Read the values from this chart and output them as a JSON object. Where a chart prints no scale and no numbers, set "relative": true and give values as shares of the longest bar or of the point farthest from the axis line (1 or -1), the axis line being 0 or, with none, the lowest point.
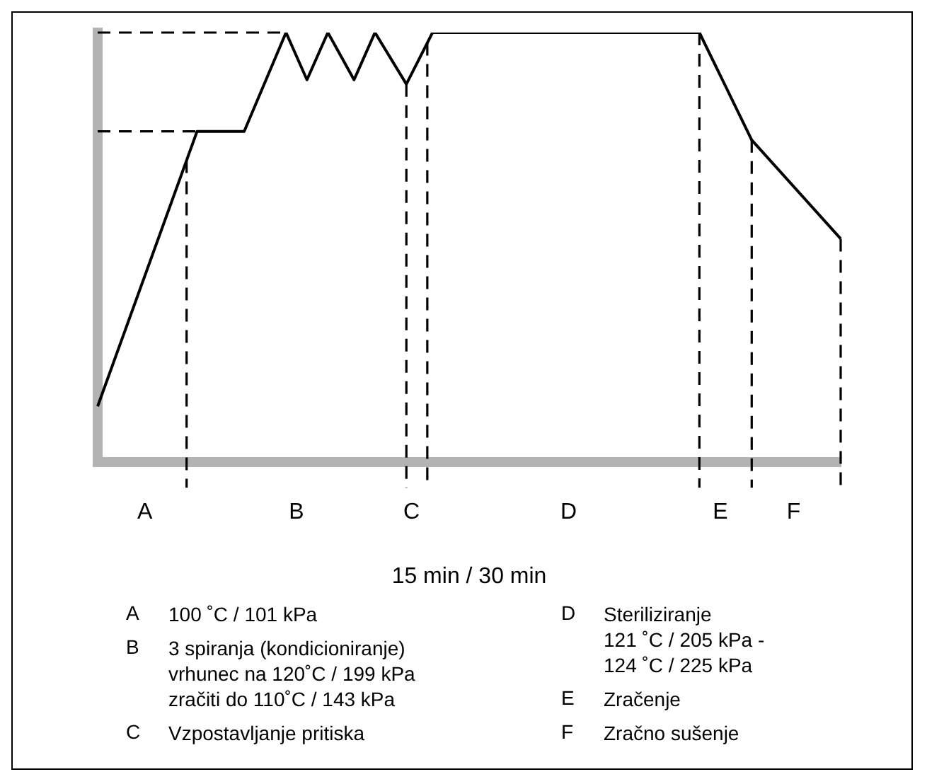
{
  "chart_data": {
    "type": "line",
    "relative": true,
    "xlabel": "15 min / 30 min",
    "categories": [
      null,
      null,
      null,
      null,
      null,
      null,
      null,
      null,
      null,
      "A",
      null,
      null,
      null,
      null,
      null,
      null,
      null,
      null,
      null,
      null,
      null,
      null,
      null,
      null,
      null,
      null,
      null,
      null,
      null,
      null,
      null,
      null,
      null,
      null,
      null,
      null,
      null,
      null,
      "B",
      null,
      null,
      null,
      null,
      null,
      null,
      null,
      null,
      null,
      null,
      null,
      null,
      null,
      null,
      null,
      null,
      null,
      null,
      null,
      null,
      null,
      "C",
      null,
      null,
      null,
      null,
      null,
      null,
      null,
      null,
      null,
      null,
      null,
      null,
      null,
      null,
      null,
      null,
      null,
      null,
      null,
      null,
      null,
      null,
      null,
      null,
      null,
      null,
      null,
      null,
      null,
      "D",
      null,
      null,
      null,
      null,
      null,
      null,
      null,
      null,
      null,
      null,
      null,
      null,
      null,
      null,
      null,
      null,
      null,
      null,
      null,
      null,
      null,
      null,
      null,
      null,
      null,
      null,
      null,
      null,
      "E",
      null,
      null,
      null,
      null,
      null,
      null,
      null,
      null,
      null,
      null,
      null,
      null,
      null,
      "F",
      null,
      null,
      null,
      null,
      null,
      null,
      null,
      null,
      null
    ],
    "series": [
      {
        "color": "#000000",
        "values": [
          0.13,
          null,
          null,
          null,
          null,
          null,
          null,
          null,
          null,
          null,
          null,
          null,
          null,
          null,
          null,
          null,
          null,
          null,
          null,
          0.77,
          null,
          null,
          null,
          null,
          null,
          null,
          null,
          null,
          0.77,
          null,
          null,
          null,
          null,
          null,
          null,
          null,
          1,
          null,
          null,
          null,
          0.89,
          null,
          null,
          null,
          1,
          null,
          null,
          null,
          null,
          0.89,
          null,
          null,
          null,
          1,
          null,
          null,
          null,
          null,
          null,
          0.88,
          null,
          null,
          null,
          null,
          1,
          null,
          null,
          null,
          null,
          null,
          null,
          null,
          null,
          null,
          null,
          null,
          null,
          null,
          null,
          null,
          null,
          null,
          null,
          null,
          null,
          null,
          null,
          null,
          null,
          null,
          null,
          null,
          null,
          null,
          null,
          null,
          null,
          null,
          null,
          null,
          null,
          null,
          null,
          null,
          null,
          null,
          null,
          null,
          null,
          null,
          null,
          null,
          null,
          null,
          null,
          1,
          null,
          null,
          null,
          null,
          null,
          null,
          null,
          null,
          null,
          0.75,
          null,
          null,
          null,
          null,
          null,
          null,
          null,
          null,
          null,
          null,
          null,
          null,
          null,
          null,
          null,
          null,
          0.52
        ]
      }
    ],
    "ref_lines": [
      {
        "axis": "y",
        "value": 1,
        "line_style": "dashed",
        "color": "#000000"
      },
      {
        "axis": "y",
        "value": 0.77,
        "line_style": "dashed",
        "color": "#000000"
      }
    ],
    "grid": false,
    "legend": false,
    "marker": "none",
    "line_style": "solid",
    "annotations": [
      "A\t100 ˚C / 101 kPa",
      "B\t3 spiranja (kondicioniranje)\nvrhunec na 120˚C / 199 kPa\nzračiti do 110˚C / 143 kPa",
      "C\tVzpostavljanje pritiska",
      "D\tSteriliziranje\n121 ˚C / 205 kPa -\n124 ˚C / 225 kPa",
      "E\tZračenje",
      "F\tZračno sušenje"
    ]
  }
}
